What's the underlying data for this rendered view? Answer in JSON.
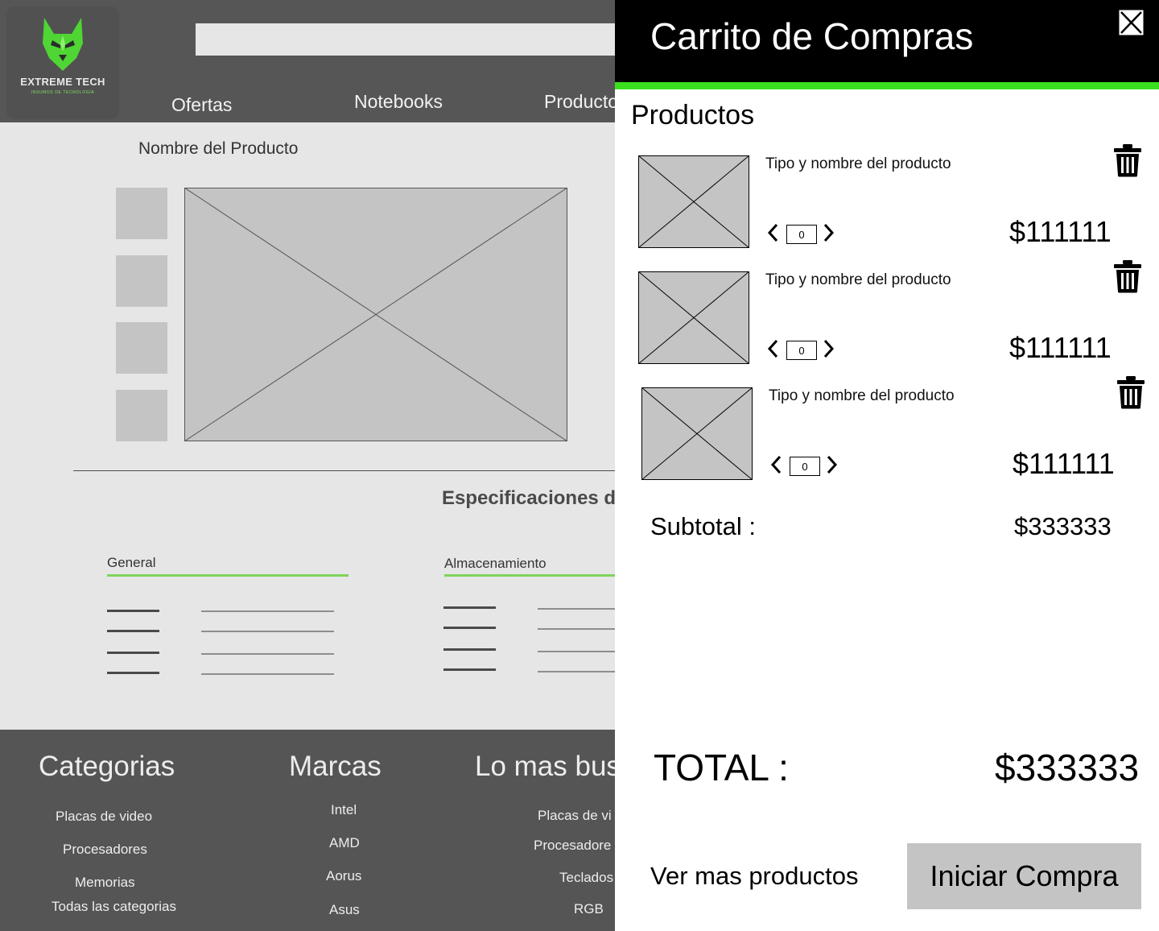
{
  "header": {
    "logo_text": "EXTREME TECH",
    "logo_subtext": "INSUMOS DE TECNOLOGÍA",
    "search_value": "",
    "nav": [
      "Ofertas",
      "Notebooks",
      "Producto"
    ]
  },
  "product": {
    "name": "Nombre del Producto",
    "specs_title": "Especificaciones de",
    "spec_tabs": [
      "General",
      "Almacenamiento"
    ]
  },
  "footer": {
    "categories": {
      "heading": "Categorias",
      "links": [
        "Placas de video",
        "Procesadores",
        "Memorias",
        "Todas las categorias"
      ]
    },
    "brands": {
      "heading": "Marcas",
      "links": [
        "Intel",
        "AMD",
        "Aorus",
        "Asus"
      ]
    },
    "popular": {
      "heading": "Lo mas bus",
      "links": [
        "Placas de vi",
        "Procesadore",
        "Teclados",
        "RGB"
      ]
    }
  },
  "cart": {
    "title": "Carrito de Compras",
    "section_label": "Productos",
    "items": [
      {
        "name": "Tipo y nombre del producto",
        "quantity": "0",
        "price": "$111111"
      },
      {
        "name": "Tipo y nombre del producto",
        "quantity": "0",
        "price": "$111111"
      },
      {
        "name": "Tipo y nombre del producto",
        "quantity": "0",
        "price": "$111111"
      }
    ],
    "subtotal_label": "Subtotal :",
    "subtotal_value": "$333333",
    "total_label": "TOTAL :",
    "total_value": "$333333",
    "more_link": "Ver mas productos",
    "checkout_label": "Iniciar Compra"
  },
  "colors": {
    "accent_green": "#39e11f",
    "header_gray": "#565656",
    "placeholder_gray": "#c4c4c4"
  },
  "icons": [
    "wolf-logo-icon",
    "close-icon",
    "trash-icon",
    "chevron-left-icon",
    "chevron-right-icon"
  ]
}
